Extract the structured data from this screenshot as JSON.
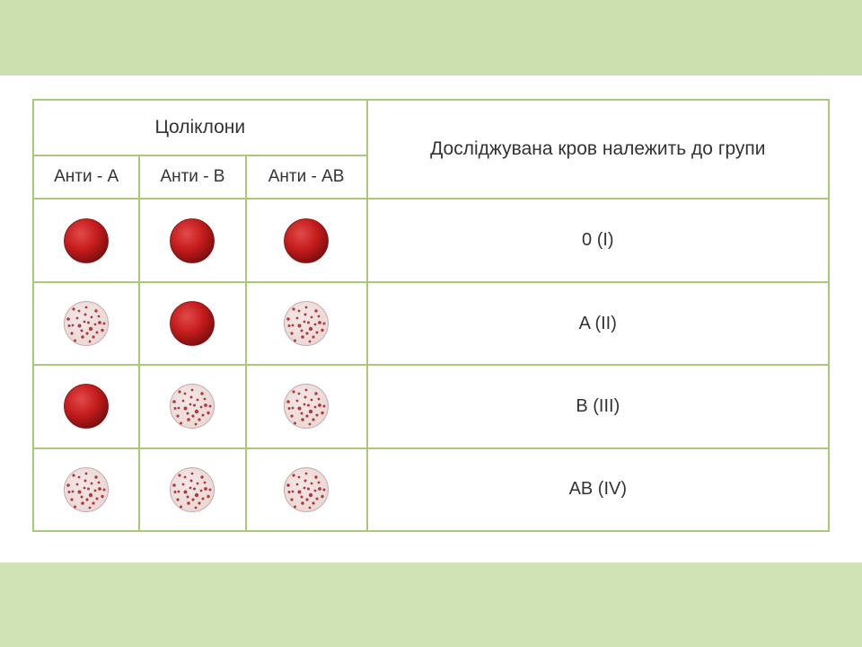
{
  "layout": {
    "band_top_height": 84,
    "band_bottom_height": 94,
    "band_top_color": "#cbe0ae",
    "band_bottom_color": "#d0e3b4",
    "grid_color": "#a8c97a",
    "background": "#ffffff"
  },
  "headers": {
    "reagents_title": "Цоліклони",
    "result_title": "Досліджувана кров належить до групи",
    "cols": [
      "Анти - A",
      "Анти - B",
      "Анти - AB"
    ]
  },
  "styling": {
    "dot_diameter": 50,
    "solid": {
      "fill": "#c41c1c",
      "edge": "#7e0f0f"
    },
    "agglut": {
      "base": "#e9d8d6",
      "speckle": "#b33a3a",
      "edge": "#caa9a7"
    }
  },
  "rows": [
    {
      "cells": [
        "solid",
        "solid",
        "solid"
      ],
      "label": "0 (I)"
    },
    {
      "cells": [
        "agglut",
        "solid",
        "agglut"
      ],
      "label": "A (II)"
    },
    {
      "cells": [
        "solid",
        "agglut",
        "agglut"
      ],
      "label": "B (III)"
    },
    {
      "cells": [
        "agglut",
        "agglut",
        "agglut"
      ],
      "label": "AB (IV)"
    }
  ]
}
